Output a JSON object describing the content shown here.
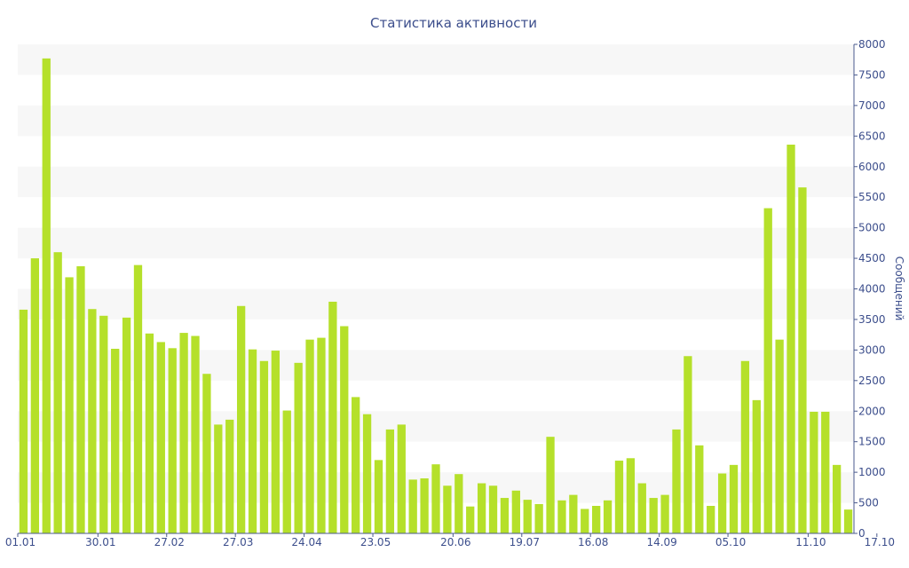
{
  "chart_data": {
    "type": "bar",
    "title": "Статистика активности",
    "ylabel": "Сообщений",
    "ylim": [
      0,
      8000
    ],
    "yticks": [
      0,
      500,
      1000,
      1500,
      2000,
      2500,
      3000,
      3500,
      4000,
      4500,
      5000,
      5500,
      6000,
      6500,
      7000,
      7500,
      8000
    ],
    "y_axis_side": "right",
    "grid": "alternating horizontal bands",
    "bar_color": "#b5e02a",
    "band_color": "#f7f7f7",
    "text_color": "#3c4e8c",
    "x_ticks": [
      {
        "label": "01.01",
        "index": 0
      },
      {
        "label": "30.01",
        "index": 7
      },
      {
        "label": "27.02",
        "index": 13
      },
      {
        "label": "27.03",
        "index": 19
      },
      {
        "label": "24.04",
        "index": 25
      },
      {
        "label": "23.05",
        "index": 31
      },
      {
        "label": "20.06",
        "index": 38
      },
      {
        "label": "19.07",
        "index": 44
      },
      {
        "label": "16.08",
        "index": 50
      },
      {
        "label": "14.09",
        "index": 56
      },
      {
        "label": "05.10",
        "index": 62
      },
      {
        "label": "11.10",
        "index": 69
      },
      {
        "label": "17.10",
        "index": 75
      }
    ],
    "values": [
      3660,
      4500,
      7770,
      4600,
      4190,
      4370,
      3670,
      3560,
      3020,
      3530,
      4390,
      3270,
      3130,
      3030,
      3280,
      3230,
      2610,
      1780,
      1860,
      3720,
      3010,
      2820,
      2990,
      2010,
      2790,
      3170,
      3200,
      3790,
      3390,
      2230,
      1950,
      1200,
      1700,
      1780,
      880,
      900,
      1130,
      780,
      970,
      440,
      820,
      780,
      580,
      700,
      550,
      480,
      1580,
      540,
      630,
      400,
      450,
      540,
      1190,
      1230,
      820,
      580,
      630,
      1700,
      2900,
      1440,
      450,
      980,
      1120,
      2820,
      2180,
      5320,
      3170,
      6360,
      5660,
      1990,
      1990,
      1120,
      390
    ]
  }
}
